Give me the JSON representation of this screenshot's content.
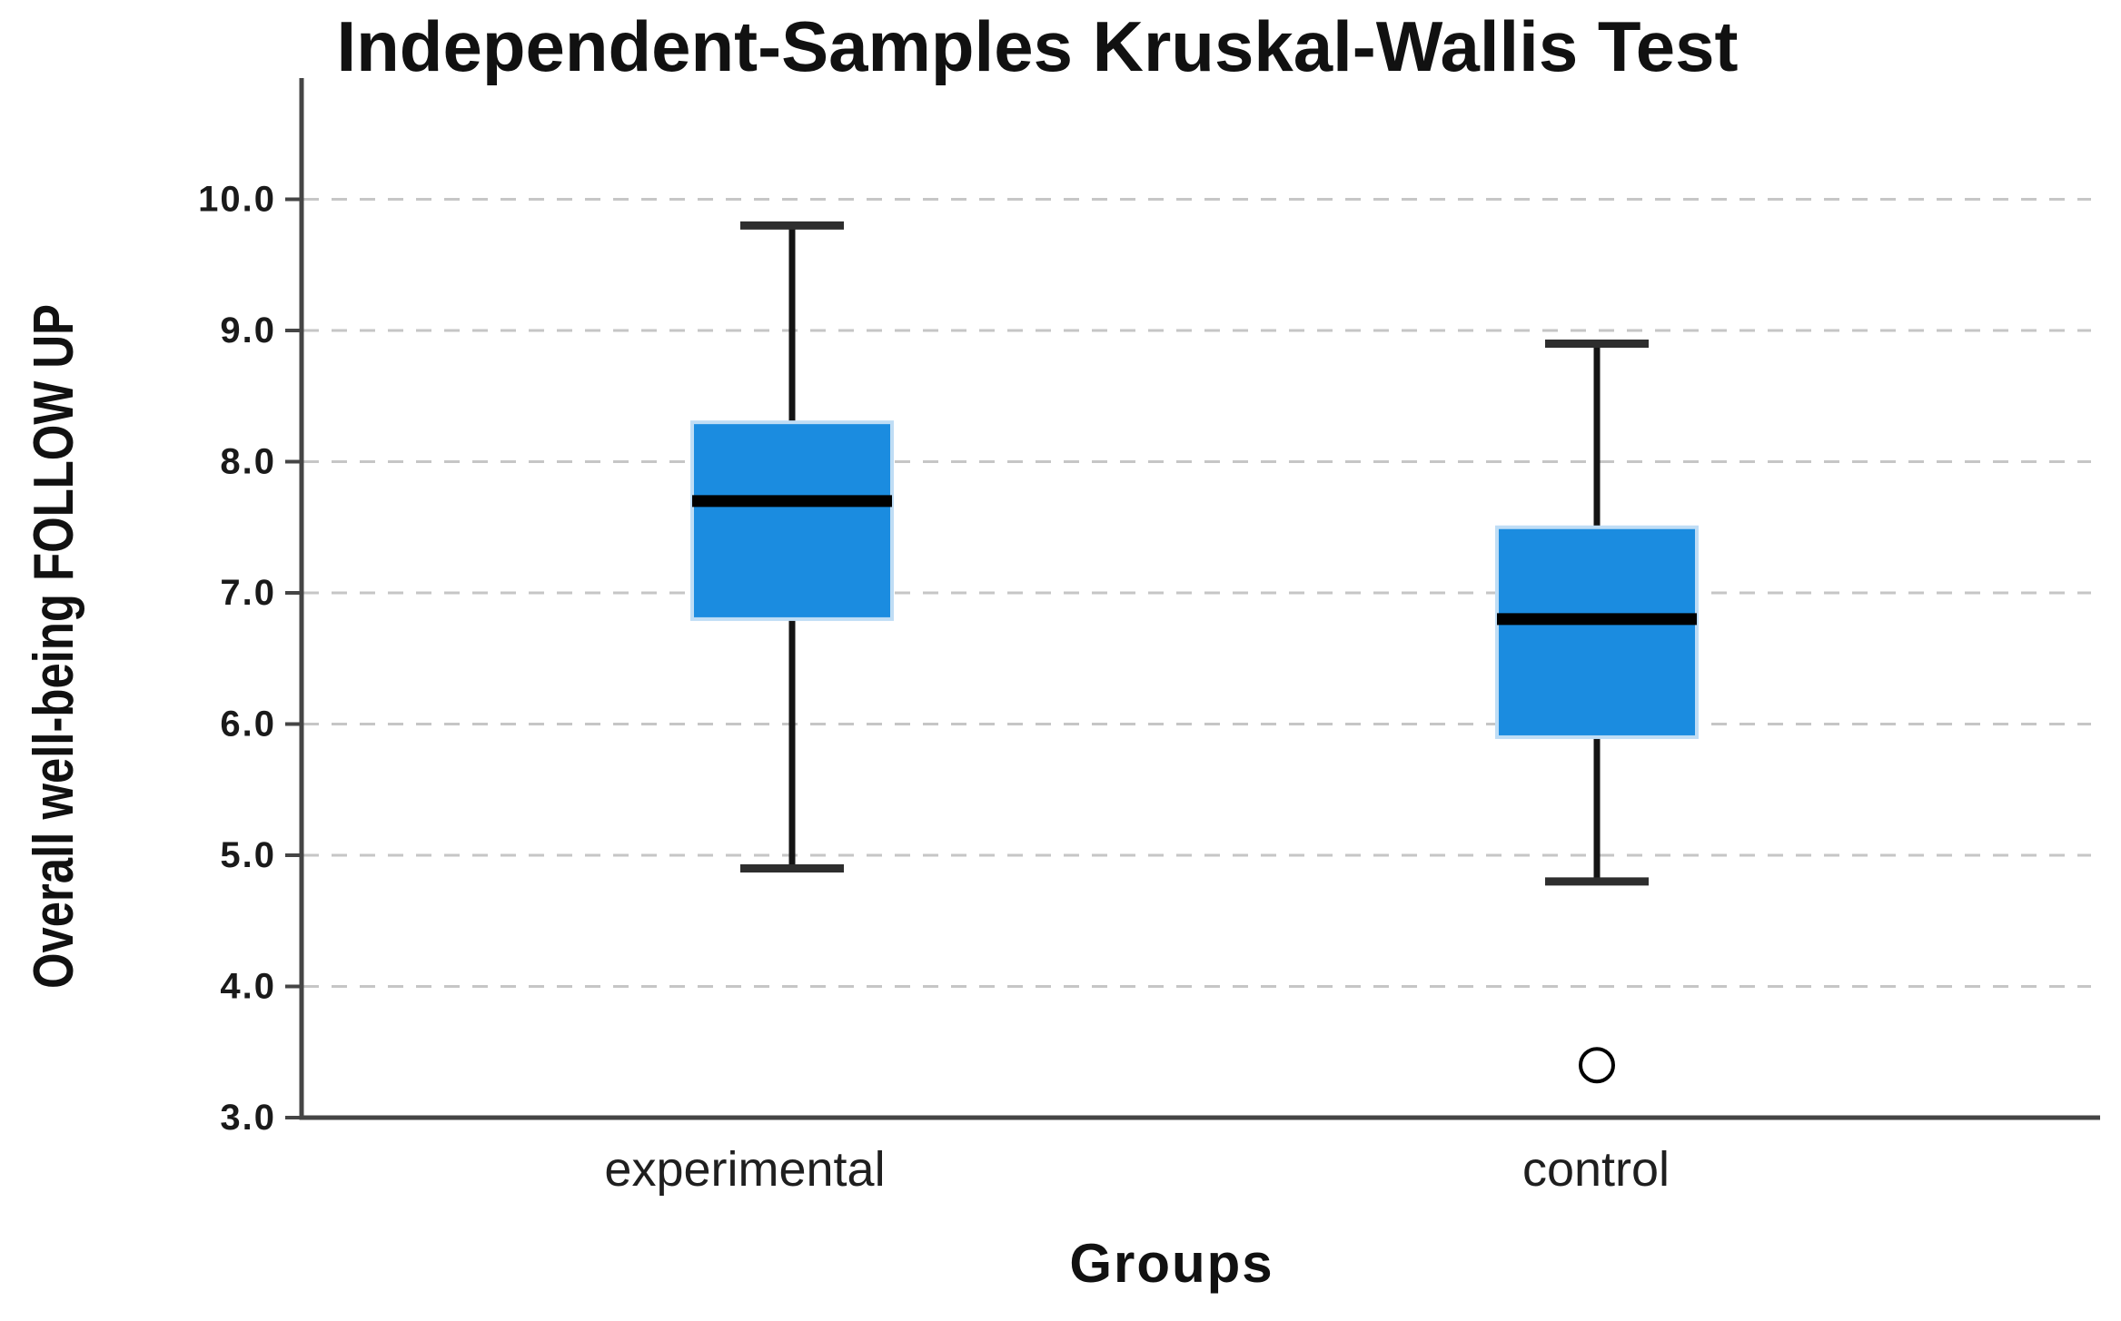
{
  "title": "Independent-Samples Kruskal-Wallis Test",
  "chart_data": {
    "type": "boxplot",
    "title": "Independent-Samples Kruskal-Wallis Test",
    "xlabel": "Groups",
    "ylabel": "Overall well-being FOLLOW UP",
    "y_axis": {
      "min": 3.0,
      "max": 10.5,
      "tick_step": 1.0,
      "grid": "dashed",
      "gridline_values": [
        10,
        9,
        8,
        7,
        6,
        5,
        4
      ],
      "ticks": [
        {
          "value": 10,
          "label": "10.0"
        },
        {
          "value": 9,
          "label": "9.0"
        },
        {
          "value": 8,
          "label": "8.0"
        },
        {
          "value": 7,
          "label": "7.0"
        },
        {
          "value": 6,
          "label": "6.0"
        },
        {
          "value": 5,
          "label": "5.0"
        },
        {
          "value": 4,
          "label": "4.0"
        },
        {
          "value": 3,
          "label": "3.0"
        }
      ]
    },
    "categories": [
      "experimental",
      "control"
    ],
    "groups": [
      {
        "label": "experimental",
        "whisker_min": 4.9,
        "q1": 6.8,
        "median": 7.7,
        "q3": 8.3,
        "whisker_max": 9.8,
        "outliers": []
      },
      {
        "label": "control",
        "whisker_min": 4.8,
        "q1": 5.9,
        "median": 6.8,
        "q3": 7.5,
        "whisker_max": 8.9,
        "outliers": [
          3.4
        ]
      }
    ],
    "legend": "none",
    "colors": {
      "box_fill": "#1B8CE0",
      "box_fringe": "#BFDDF5",
      "median": "#000000",
      "whisker": "#141414",
      "cap": "#2E2E2E",
      "grid": "#C6C6C6",
      "axis": "#454545",
      "text": "#1A1A1A"
    }
  }
}
